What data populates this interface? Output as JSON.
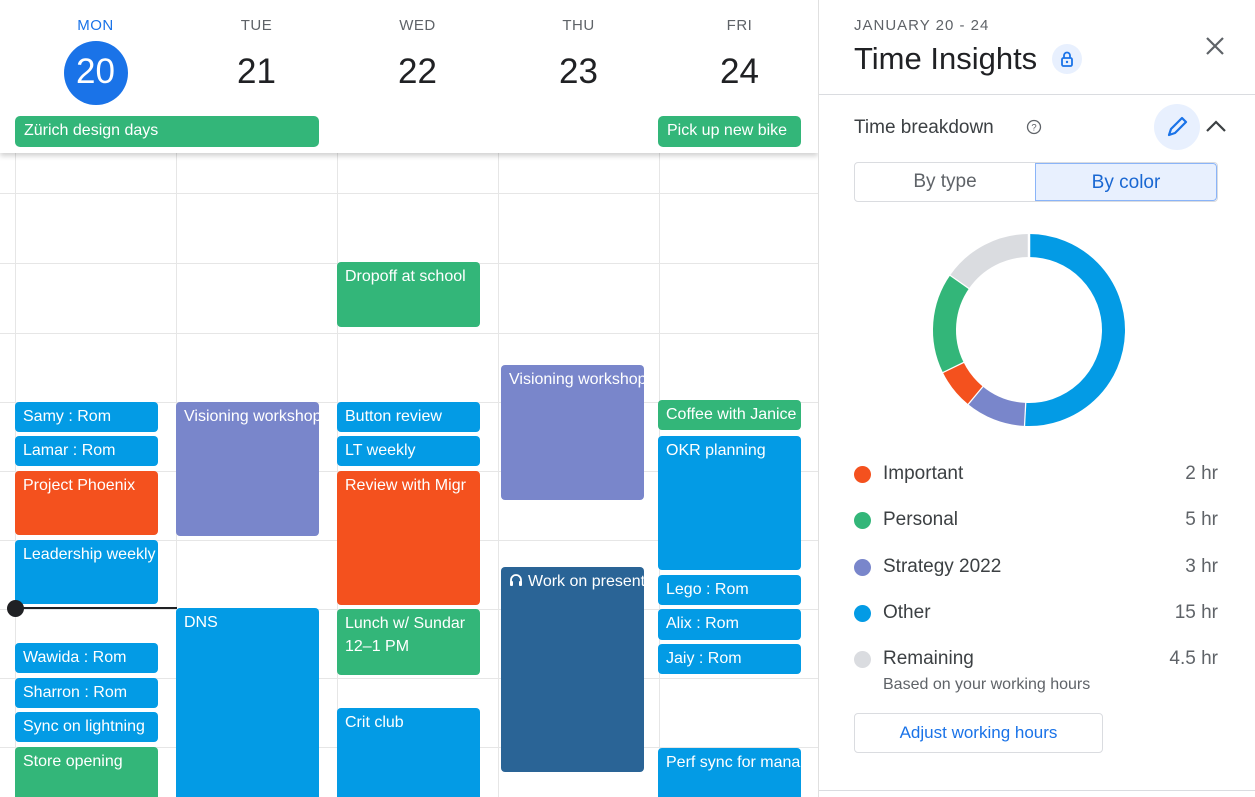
{
  "calendar": {
    "days": [
      {
        "dow": "MON",
        "num": "20",
        "today": true
      },
      {
        "dow": "TUE",
        "num": "21"
      },
      {
        "dow": "WED",
        "num": "22"
      },
      {
        "dow": "THU",
        "num": "23"
      },
      {
        "dow": "FRI",
        "num": "24"
      }
    ],
    "all_day": [
      {
        "title": "Zürich design days",
        "color": "#33b679"
      },
      {
        "title": "Pick up new bike",
        "color": "#33b679"
      }
    ],
    "events": [
      {
        "day": 0,
        "title": "Samy : Rom",
        "color": "#039be5"
      },
      {
        "day": 0,
        "title": "Lamar : Rom",
        "color": "#039be5"
      },
      {
        "day": 0,
        "title": "Project Phoenix",
        "color": "#f4511e"
      },
      {
        "day": 0,
        "title": "Leadership weekly",
        "color": "#039be5"
      },
      {
        "day": 0,
        "title": "Wawida : Rom",
        "color": "#039be5"
      },
      {
        "day": 0,
        "title": "Sharron : Rom",
        "color": "#039be5"
      },
      {
        "day": 0,
        "title": "Sync on lightning",
        "color": "#039be5"
      },
      {
        "day": 0,
        "title": "Store opening",
        "color": "#33b679"
      },
      {
        "day": 1,
        "title": "Visioning workshop",
        "color": "#7986cb"
      },
      {
        "day": 1,
        "title": "DNS",
        "color": "#039be5"
      },
      {
        "day": 2,
        "title": "Dropoff at school",
        "color": "#33b679"
      },
      {
        "day": 2,
        "title": "Button review",
        "color": "#039be5"
      },
      {
        "day": 2,
        "title": "LT weekly",
        "color": "#039be5"
      },
      {
        "day": 2,
        "title": "Review with Migr",
        "color": "#f4511e"
      },
      {
        "day": 2,
        "title": "Lunch w/ Sundar",
        "time": "12–1 PM",
        "color": "#33b679"
      },
      {
        "day": 2,
        "title": "Crit club",
        "color": "#039be5"
      },
      {
        "day": 3,
        "title": "Visioning workshop",
        "color": "#7986cb"
      },
      {
        "day": 3,
        "title": "Work on presentation",
        "icon": "headphones-icon",
        "color": "#2a6496"
      },
      {
        "day": 4,
        "title": "Coffee with Janice",
        "color": "#33b679"
      },
      {
        "day": 4,
        "title": "OKR planning",
        "color": "#039be5"
      },
      {
        "day": 4,
        "title": "Lego : Rom",
        "color": "#039be5"
      },
      {
        "day": 4,
        "title": "Alix : Rom",
        "color": "#039be5"
      },
      {
        "day": 4,
        "title": "Jaiy : Rom",
        "color": "#039be5"
      },
      {
        "day": 4,
        "title": "Perf sync for mana",
        "color": "#039be5"
      }
    ]
  },
  "panel": {
    "date_range": "JANUARY 20 - 24",
    "title": "Time Insights",
    "section_title": "Time breakdown",
    "toggle": {
      "options": [
        "By type",
        "By color"
      ],
      "selected": "By color"
    },
    "working_hours_note": "Based on your working hours",
    "adjust_button": "Adjust working hours"
  },
  "chart_data": {
    "type": "pie",
    "donut": true,
    "series": [
      {
        "name": "Important",
        "value": 2,
        "label": "2 hr",
        "color": "#f4511e"
      },
      {
        "name": "Personal",
        "value": 5,
        "label": "5 hr",
        "color": "#33b679"
      },
      {
        "name": "Strategy 2022",
        "value": 3,
        "label": "3 hr",
        "color": "#7986cb"
      },
      {
        "name": "Other",
        "value": 15,
        "label": "15 hr",
        "color": "#039be5"
      },
      {
        "name": "Remaining",
        "value": 4.5,
        "label": "4.5 hr",
        "color": "#dadce0"
      }
    ]
  }
}
